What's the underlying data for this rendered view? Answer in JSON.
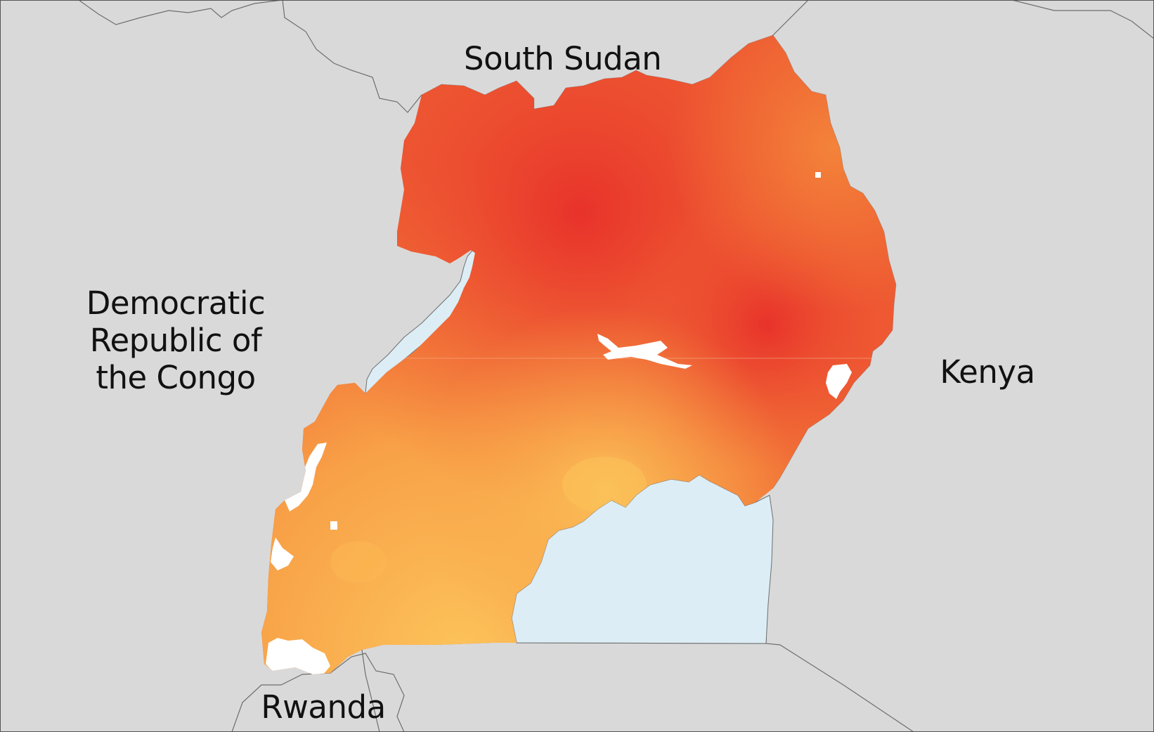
{
  "map": {
    "colors": {
      "background": "#d9d9d9",
      "border": "#6e6e6e",
      "water": "#dcedf5",
      "no_data": "#ffffff",
      "heat_low": "#fcc35a",
      "heat_mid": "#f58a3a",
      "heat_high": "#e8322b"
    },
    "labels": {
      "south_sudan": "South Sudan",
      "drc_line1": "Democratic",
      "drc_line2": "Republic of",
      "drc_line3": "the Congo",
      "kenya": "Kenya",
      "rwanda": "Rwanda"
    }
  }
}
